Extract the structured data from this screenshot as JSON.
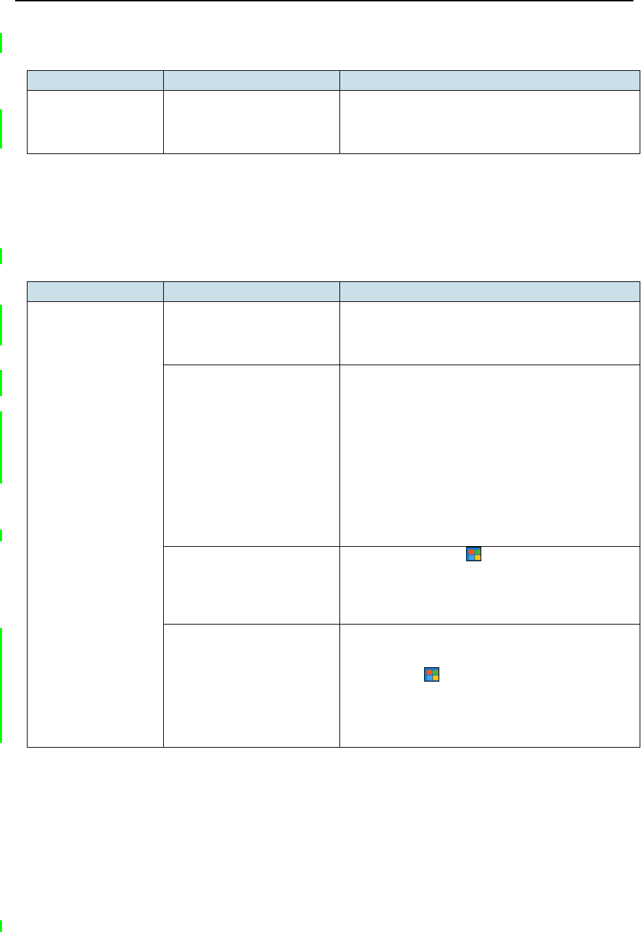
{
  "colors": {
    "header_fill": "#cadfe8",
    "change_bar": "#00ff00",
    "rule": "#000000"
  },
  "icons": [
    "windows-start-icon",
    "windows-start-icon"
  ],
  "table1": {
    "headers": [
      "",
      "",
      ""
    ],
    "rows": [
      [
        "",
        "",
        ""
      ]
    ]
  },
  "table2": {
    "headers": [
      "",
      "",
      ""
    ],
    "rows": [
      [
        "",
        "",
        ""
      ],
      [
        "",
        ""
      ],
      [
        "",
        ""
      ],
      [
        "",
        ""
      ]
    ]
  }
}
